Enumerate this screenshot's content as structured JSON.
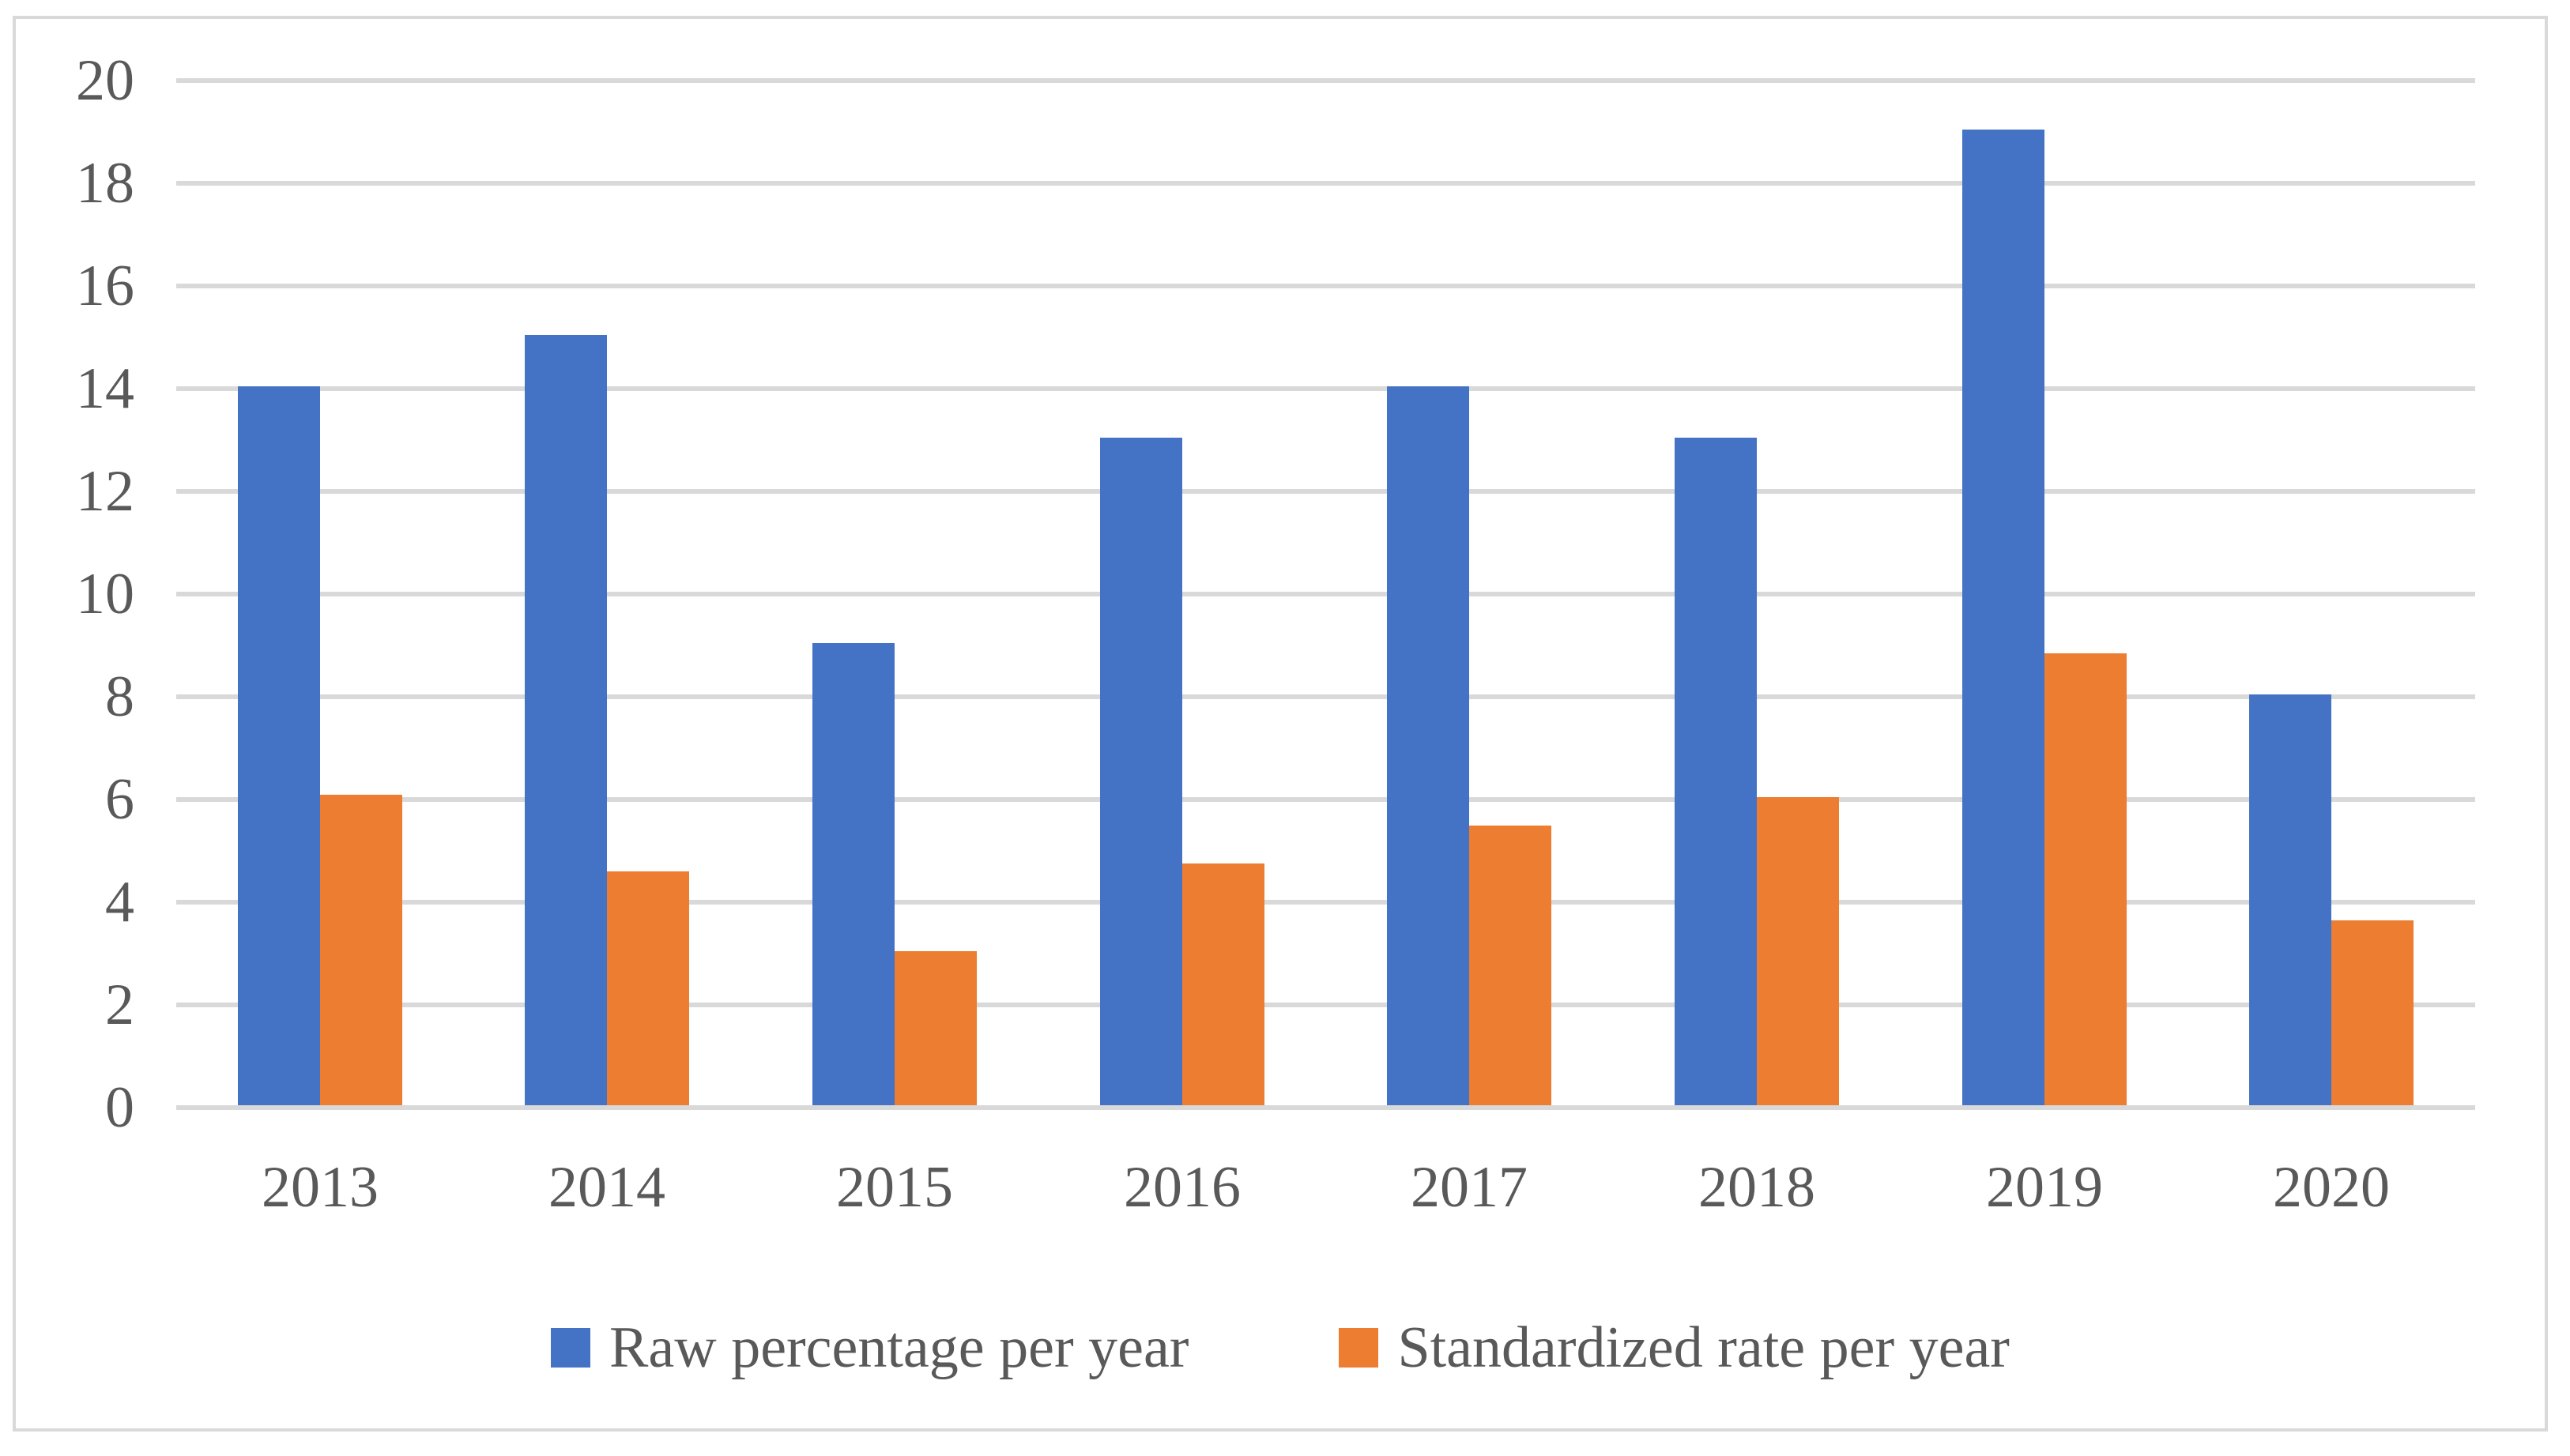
{
  "chart_data": {
    "type": "bar",
    "title": "",
    "xlabel": "",
    "ylabel": "",
    "categories": [
      "2013",
      "2014",
      "2015",
      "2016",
      "2017",
      "2018",
      "2019",
      "2020"
    ],
    "series": [
      {
        "name": "Raw percentage per year",
        "key": "raw-percentage",
        "color": "#4472C4",
        "values": [
          14,
          15,
          9,
          13,
          14,
          13,
          19,
          8
        ]
      },
      {
        "name": "Standardized rate per year",
        "key": "standardized-rate",
        "color": "#ED7D31",
        "values": [
          6.05,
          4.55,
          3,
          4.7,
          5.45,
          6.0,
          8.8,
          3.6
        ]
      }
    ],
    "ylim": [
      0,
      20
    ],
    "ytick_step": 2,
    "ytick_labels": [
      "0",
      "2",
      "4",
      "6",
      "8",
      "10",
      "12",
      "14",
      "16",
      "18",
      "20"
    ],
    "grid": true,
    "legend_position": "bottom-center",
    "colors": {
      "gridline": "#D9D9D9",
      "axis_line": "#D9D9D9",
      "frame_border": "#D9D9D9",
      "text": "#595959",
      "background": "#FFFFFF"
    }
  }
}
